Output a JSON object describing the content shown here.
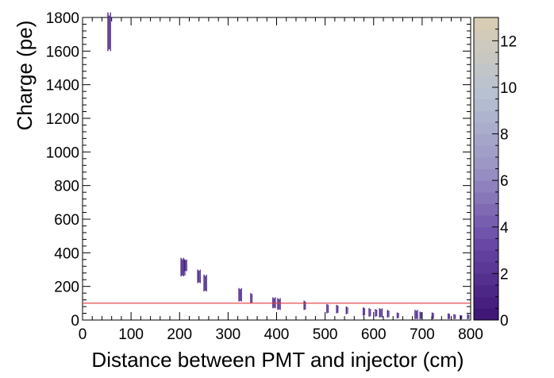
{
  "chart_data": {
    "type": "heatmap",
    "xlabel": "Distance between PMT and injector (cm)",
    "ylabel": "Charge (pe)",
    "xlim": [
      0,
      800
    ],
    "ylim": [
      0,
      1800
    ],
    "x_ticks": [
      "0",
      "100",
      "200",
      "300",
      "400",
      "500",
      "600",
      "700",
      "800"
    ],
    "y_ticks": [
      "0",
      "200",
      "400",
      "600",
      "800",
      "1000",
      "1200",
      "1400",
      "1600",
      "1800"
    ],
    "colorbar": {
      "min": 0,
      "max": 13,
      "ticks": [
        "0",
        "2",
        "4",
        "6",
        "8",
        "10",
        "12"
      ],
      "low_color": "#3f1777",
      "high_color": "#d8cdb4"
    },
    "reference_line": {
      "y": 100,
      "color": "#e8383d"
    },
    "clusters": [
      {
        "x": 55,
        "y_min": 1600,
        "y_max": 1830,
        "count": 3
      },
      {
        "x": 207,
        "y_min": 260,
        "y_max": 370,
        "count": 4
      },
      {
        "x": 212,
        "y_min": 290,
        "y_max": 360,
        "count": 3
      },
      {
        "x": 240,
        "y_min": 220,
        "y_max": 300,
        "count": 3
      },
      {
        "x": 253,
        "y_min": 170,
        "y_max": 270,
        "count": 3
      },
      {
        "x": 325,
        "y_min": 110,
        "y_max": 190,
        "count": 3
      },
      {
        "x": 348,
        "y_min": 100,
        "y_max": 160,
        "count": 2
      },
      {
        "x": 395,
        "y_min": 70,
        "y_max": 135,
        "count": 3
      },
      {
        "x": 405,
        "y_min": 60,
        "y_max": 130,
        "count": 3
      },
      {
        "x": 458,
        "y_min": 60,
        "y_max": 115,
        "count": 2
      },
      {
        "x": 505,
        "y_min": 40,
        "y_max": 95,
        "count": 2
      },
      {
        "x": 525,
        "y_min": 40,
        "y_max": 90,
        "count": 2
      },
      {
        "x": 545,
        "y_min": 35,
        "y_max": 80,
        "count": 2
      },
      {
        "x": 580,
        "y_min": 25,
        "y_max": 75,
        "count": 2
      },
      {
        "x": 592,
        "y_min": 20,
        "y_max": 70,
        "count": 2
      },
      {
        "x": 605,
        "y_min": 20,
        "y_max": 65,
        "count": 2
      },
      {
        "x": 615,
        "y_min": 15,
        "y_max": 70,
        "count": 3
      },
      {
        "x": 630,
        "y_min": 15,
        "y_max": 60,
        "count": 2
      },
      {
        "x": 650,
        "y_min": 10,
        "y_max": 45,
        "count": 2
      },
      {
        "x": 688,
        "y_min": 5,
        "y_max": 60,
        "count": 3
      },
      {
        "x": 697,
        "y_min": 5,
        "y_max": 50,
        "count": 2
      },
      {
        "x": 722,
        "y_min": 5,
        "y_max": 45,
        "count": 2
      },
      {
        "x": 755,
        "y_min": 5,
        "y_max": 40,
        "count": 2
      },
      {
        "x": 767,
        "y_min": 5,
        "y_max": 35,
        "count": 2
      },
      {
        "x": 780,
        "y_min": 5,
        "y_max": 30,
        "count": 2
      },
      {
        "x": 795,
        "y_min": 5,
        "y_max": 35,
        "count": 2
      }
    ]
  }
}
